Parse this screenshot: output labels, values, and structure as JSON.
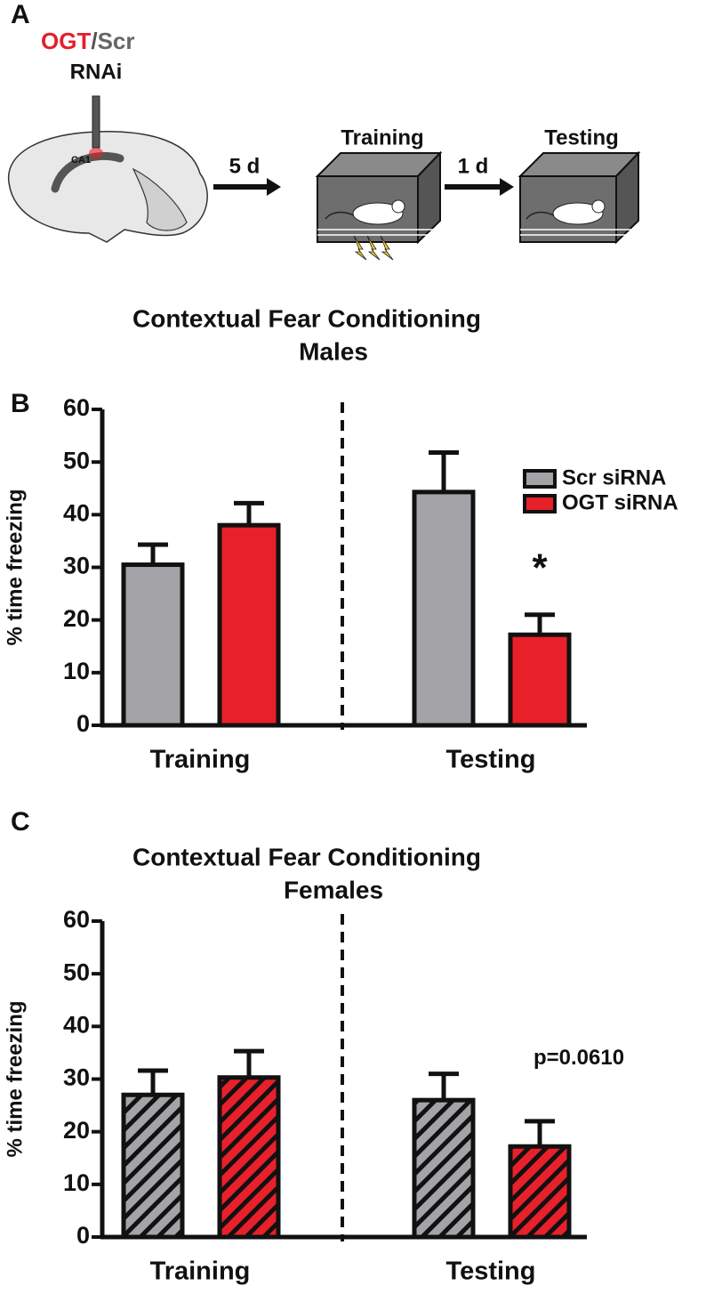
{
  "panel_a": {
    "letter": "A",
    "rnai_target": "OGT",
    "separator": "/",
    "rnai_control": "Scr",
    "rnai_label": "RNAi",
    "region": "CA1",
    "delay_1": "5 d",
    "stage_1": "Training",
    "delay_2": "1 d",
    "stage_2": "Testing"
  },
  "chart_data": [
    {
      "type": "bar",
      "panel": "B",
      "title": "Contextual Fear Conditioning",
      "subtitle": "Males",
      "ylabel": "% time freezing",
      "categories": [
        "Training",
        "Testing"
      ],
      "series": [
        {
          "name": "Scr siRNA",
          "color": "#a3a3a8",
          "values": [
            30.5,
            44.3
          ],
          "errors": [
            3.8,
            7.5
          ]
        },
        {
          "name": "OGT siRNA",
          "color": "#e8202a",
          "values": [
            38,
            17.2
          ],
          "errors": [
            4.2,
            3.8
          ],
          "annotation": "*"
        }
      ],
      "ylim": [
        0,
        60
      ],
      "yticks": [
        0,
        10,
        20,
        30,
        40,
        50,
        60
      ],
      "legend": "right",
      "hatch": false
    },
    {
      "type": "bar",
      "panel": "C",
      "title": "Contextual Fear Conditioning",
      "subtitle": "Females",
      "ylabel": "% time freezing",
      "categories": [
        "Training",
        "Testing"
      ],
      "series": [
        {
          "color": "#a3a3a8",
          "values": [
            27,
            26
          ],
          "errors": [
            4.6,
            5
          ]
        },
        {
          "color": "#e8202a",
          "values": [
            30.3,
            17.2
          ],
          "errors": [
            5,
            4.8
          ],
          "annotation": "p=0.0610"
        }
      ],
      "ylim": [
        0,
        60
      ],
      "yticks": [
        0,
        10,
        20,
        30,
        40,
        50,
        60
      ],
      "hatch": true
    }
  ]
}
